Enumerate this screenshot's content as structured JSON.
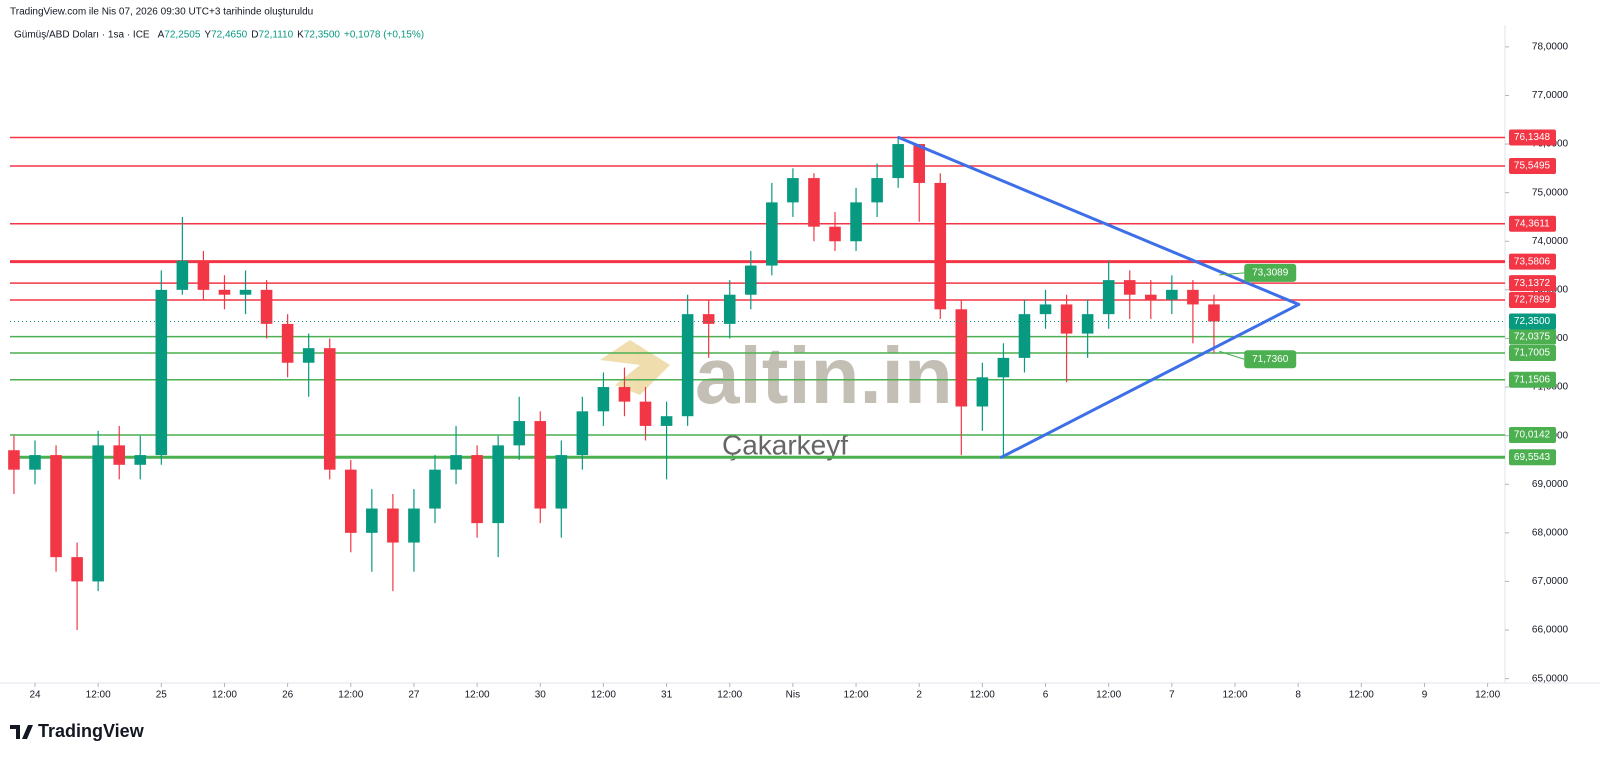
{
  "header": {
    "created": "TradingView.com ile Nis 07, 2026 09:30 UTC+3 tarihinde oluşturuldu",
    "symbol": "Gümüş/ABD Doları · 1sa · ICE",
    "ohlc": [
      {
        "key": "A",
        "value": "72,2505"
      },
      {
        "key": "Y",
        "value": "72,4650"
      },
      {
        "key": "D",
        "value": "72,1110"
      },
      {
        "key": "K",
        "value": "72,3500"
      }
    ],
    "change": "+0,1078 (+0,15%)"
  },
  "watermark": {
    "brand": "altin.in",
    "author": "Çakarkeyf"
  },
  "footer": {
    "logo": "TradingView"
  },
  "chart_data": {
    "type": "candlestick",
    "up_color": "#089981",
    "down_color": "#f23645",
    "grid": false,
    "x": [
      -4,
      0,
      4,
      8,
      12,
      16,
      20,
      24,
      28,
      32,
      36,
      40,
      44,
      48,
      52,
      56,
      60,
      64,
      68,
      72,
      76,
      80,
      84,
      88,
      92,
      96,
      100,
      104,
      108,
      112,
      116,
      120,
      124,
      128,
      132,
      136,
      140,
      144,
      148,
      152,
      156,
      160,
      164,
      168,
      172,
      176,
      180,
      184,
      188,
      192,
      196,
      200,
      204,
      208,
      212,
      216,
      220,
      224
    ],
    "open": [
      69.7,
      69.3,
      69.6,
      67.5,
      67.0,
      69.8,
      69.4,
      69.6,
      73.0,
      73.6,
      73.0,
      72.9,
      73.0,
      72.3,
      71.5,
      71.8,
      69.3,
      68.0,
      68.5,
      67.8,
      68.5,
      69.3,
      69.6,
      68.2,
      69.8,
      70.3,
      68.5,
      69.6,
      70.5,
      71.0,
      70.7,
      70.2,
      70.4,
      72.5,
      72.3,
      72.9,
      73.5,
      74.8,
      75.3,
      74.3,
      74.0,
      74.8,
      75.3,
      76.0,
      75.2,
      72.6,
      70.6,
      71.2,
      71.6,
      72.5,
      72.7,
      72.1,
      72.5,
      73.2,
      72.9,
      72.8,
      73.0,
      72.7
    ],
    "high": [
      70.0,
      69.9,
      69.8,
      67.8,
      70.1,
      70.2,
      70.0,
      73.4,
      74.5,
      73.8,
      73.3,
      73.4,
      73.2,
      72.5,
      72.1,
      72.0,
      69.5,
      68.9,
      68.8,
      68.9,
      69.6,
      70.2,
      69.8,
      70.0,
      70.8,
      70.5,
      69.9,
      70.8,
      71.3,
      71.4,
      71.0,
      70.7,
      72.9,
      72.8,
      73.2,
      73.8,
      75.2,
      75.5,
      75.4,
      74.6,
      75.1,
      75.6,
      76.13,
      76.0,
      75.4,
      72.8,
      71.5,
      71.9,
      72.8,
      73.0,
      72.9,
      72.8,
      73.6,
      73.4,
      73.2,
      73.3,
      73.2,
      72.9
    ],
    "low": [
      68.8,
      69.0,
      67.2,
      66.0,
      66.8,
      69.1,
      69.1,
      69.4,
      72.9,
      72.8,
      72.6,
      72.5,
      72.0,
      71.2,
      70.8,
      69.1,
      67.6,
      67.2,
      66.8,
      67.2,
      68.2,
      69.0,
      67.9,
      67.5,
      69.5,
      68.2,
      67.9,
      69.3,
      70.2,
      70.4,
      69.9,
      69.1,
      70.2,
      71.6,
      72.0,
      72.6,
      73.3,
      74.5,
      74.0,
      73.8,
      73.8,
      74.5,
      75.1,
      74.4,
      72.4,
      69.6,
      70.1,
      69.55,
      71.3,
      72.2,
      71.1,
      71.6,
      72.2,
      72.4,
      72.4,
      72.5,
      71.9,
      71.7
    ],
    "close": [
      69.3,
      69.6,
      67.5,
      67.0,
      69.8,
      69.4,
      69.6,
      73.0,
      73.6,
      73.0,
      72.9,
      73.0,
      72.3,
      71.5,
      71.8,
      69.3,
      68.0,
      68.5,
      67.8,
      68.5,
      69.3,
      69.6,
      68.2,
      69.8,
      70.3,
      68.5,
      69.6,
      70.5,
      71.0,
      70.7,
      70.2,
      70.4,
      72.5,
      72.3,
      72.9,
      73.5,
      74.8,
      75.3,
      74.3,
      74.0,
      74.8,
      75.3,
      76.0,
      75.2,
      72.6,
      70.6,
      71.2,
      71.6,
      72.5,
      72.7,
      72.1,
      72.5,
      73.2,
      72.9,
      72.8,
      73.0,
      72.7,
      72.35
    ],
    "xlim": [
      -4.75,
      279.3
    ],
    "ylim": [
      64.91,
      78.45
    ],
    "xticks": [
      {
        "value": 0,
        "label": "24"
      },
      {
        "value": 12,
        "label": "12:00"
      },
      {
        "value": 24,
        "label": "25"
      },
      {
        "value": 36,
        "label": "12:00"
      },
      {
        "value": 48,
        "label": "26"
      },
      {
        "value": 60,
        "label": "12:00"
      },
      {
        "value": 72,
        "label": "27"
      },
      {
        "value": 84,
        "label": "12:00"
      },
      {
        "value": 96,
        "label": "30"
      },
      {
        "value": 108,
        "label": "12:00"
      },
      {
        "value": 120,
        "label": "31"
      },
      {
        "value": 132,
        "label": "12:00"
      },
      {
        "value": 144,
        "label": "Nis"
      },
      {
        "value": 156,
        "label": "12:00"
      },
      {
        "value": 168,
        "label": "2"
      },
      {
        "value": 180,
        "label": "12:00"
      },
      {
        "value": 192,
        "label": "6"
      },
      {
        "value": 204,
        "label": "12:00"
      },
      {
        "value": 216,
        "label": "7"
      },
      {
        "value": 228,
        "label": "12:00"
      },
      {
        "value": 240,
        "label": "8"
      },
      {
        "value": 252,
        "label": "12:00"
      },
      {
        "value": 264,
        "label": "9"
      },
      {
        "value": 276,
        "label": "12:00"
      }
    ],
    "yticks": [
      {
        "value": 65,
        "label": "65,0000"
      },
      {
        "value": 66,
        "label": "66,0000"
      },
      {
        "value": 67,
        "label": "67,0000"
      },
      {
        "value": 68,
        "label": "68,0000"
      },
      {
        "value": 69,
        "label": "69,0000"
      },
      {
        "value": 70,
        "label": "70,0000"
      },
      {
        "value": 71,
        "label": "71,0000"
      },
      {
        "value": 72,
        "label": "72,0000"
      },
      {
        "value": 73,
        "label": "73,0000"
      },
      {
        "value": 74,
        "label": "74,0000"
      },
      {
        "value": 75,
        "label": "75,0000"
      },
      {
        "value": 76,
        "label": "76,0000"
      },
      {
        "value": 77,
        "label": "77,0000"
      },
      {
        "value": 78,
        "label": "78,0000"
      }
    ],
    "levels": [
      {
        "value": 76.1348,
        "label": "76,1348",
        "color": "#f23645",
        "width": 1.5
      },
      {
        "value": 75.5495,
        "label": "75,5495",
        "color": "#f23645",
        "width": 1.5
      },
      {
        "value": 74.3611,
        "label": "74,3611",
        "color": "#f23645",
        "width": 1.5
      },
      {
        "value": 73.5806,
        "label": "73,5806",
        "color": "#f23645",
        "width": 3
      },
      {
        "value": 73.1372,
        "label": "73,1372",
        "color": "#f23645",
        "width": 1.5
      },
      {
        "value": 72.7899,
        "label": "72,7899",
        "color": "#f23645",
        "width": 1.5
      },
      {
        "value": 72.0375,
        "label": "72,0375",
        "color": "#4caf50",
        "width": 1.5
      },
      {
        "value": 71.7005,
        "label": "71,7005",
        "color": "#4caf50",
        "width": 1.5
      },
      {
        "value": 71.1506,
        "label": "71,1506",
        "color": "#4caf50",
        "width": 1.5
      },
      {
        "value": 70.0142,
        "label": "70,0142",
        "color": "#4caf50",
        "width": 1.5
      },
      {
        "value": 69.5543,
        "label": "69,5543",
        "color": "#4caf50",
        "width": 3
      }
    ],
    "last_price": {
      "value": 72.35,
      "label": "72,3500",
      "color": "#089981"
    },
    "triangle": {
      "color": "#3d6fe8",
      "x": [
        164.1,
        240.1,
        183.6
      ],
      "y": [
        76.1348,
        72.7,
        69.5543
      ]
    },
    "callouts": [
      {
        "value": 73.3089,
        "label": "73,3089",
        "x": 225,
        "color": "#4caf50"
      },
      {
        "value": 71.736,
        "label": "71,7360",
        "x": 225,
        "color": "#4caf50"
      }
    ]
  }
}
